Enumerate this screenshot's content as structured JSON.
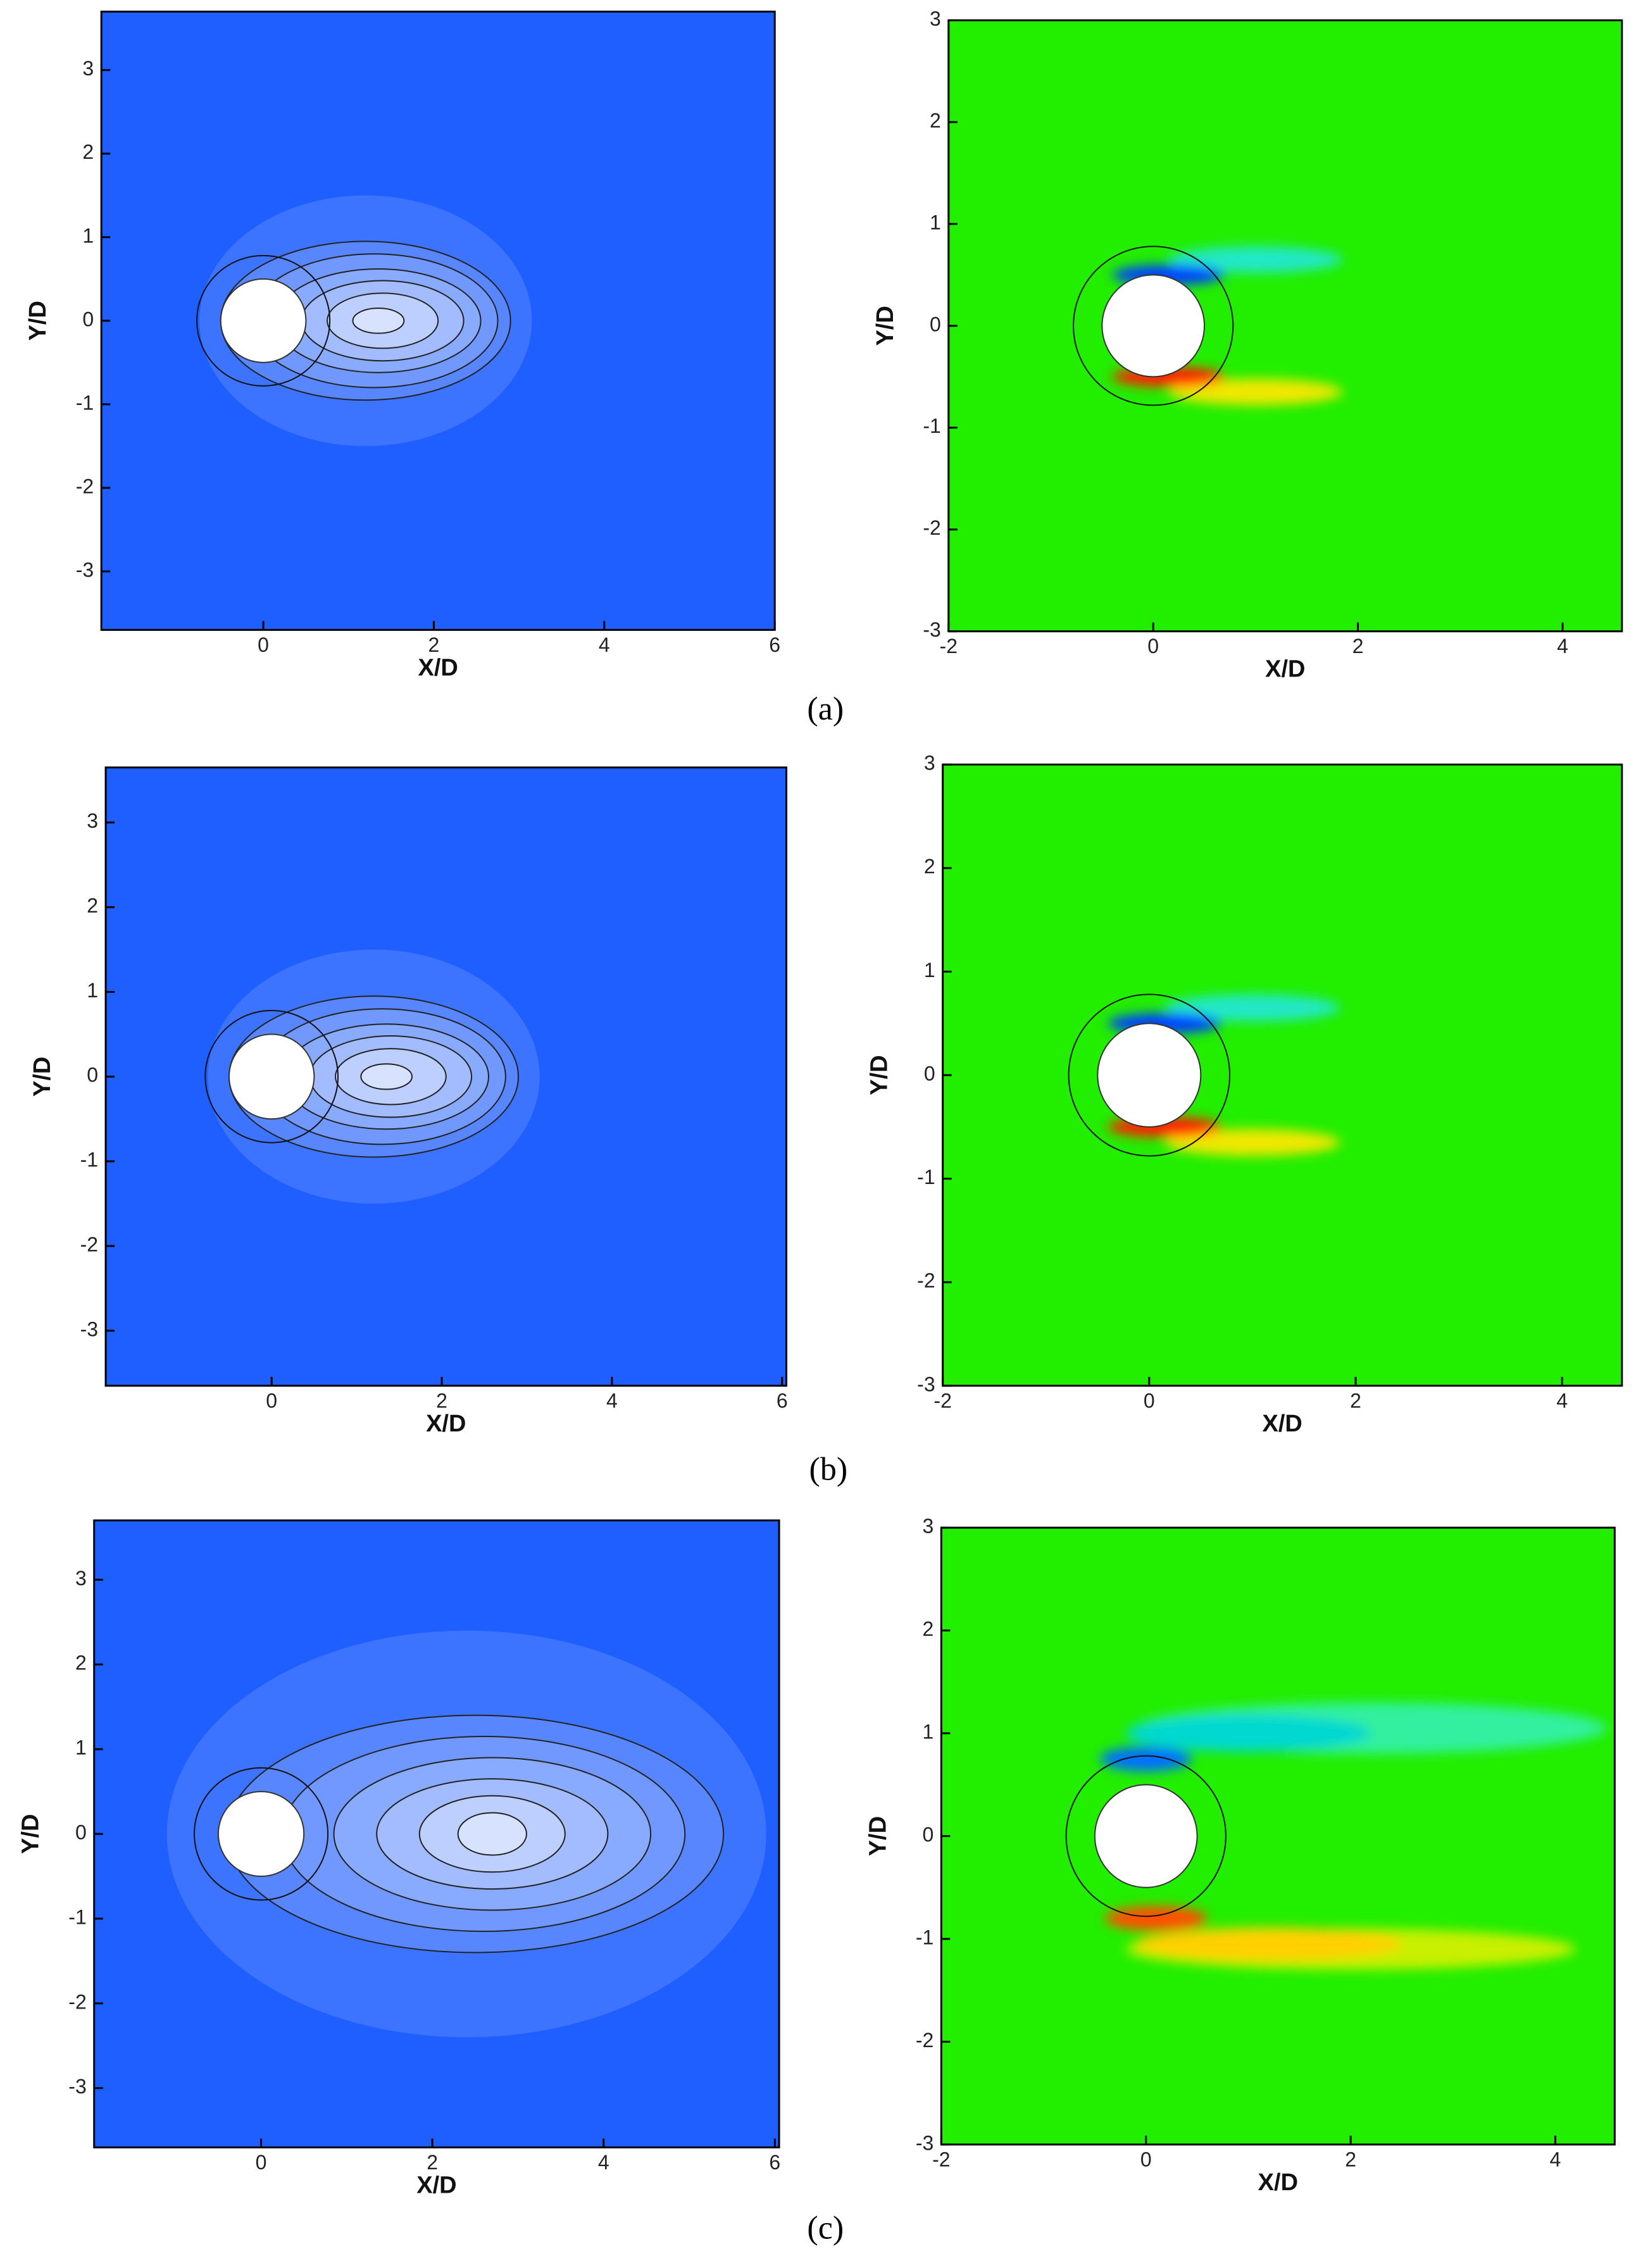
{
  "chart_data": [
    {
      "type": "contour",
      "color": "#1f5fff",
      "xlabel": "X/D",
      "ylabel": "Y/D",
      "xlim": [
        -1.9,
        6.0
      ],
      "ylim": [
        -3.7,
        3.7
      ],
      "xticks": [
        0,
        2,
        4,
        6
      ],
      "yticks": [
        -3,
        -2,
        -1,
        0,
        1,
        2,
        3
      ]
    },
    {
      "type": "contour",
      "color": "#22ee00",
      "xlabel": "X/D",
      "ylabel": "Y/D",
      "xlim": [
        -2,
        4.58
      ],
      "ylim": [
        -3,
        3
      ],
      "xticks": [
        -2,
        0,
        2,
        4
      ],
      "yticks": [
        -3,
        -2,
        -1,
        0,
        1,
        2,
        3
      ]
    },
    {
      "type": "contour",
      "color": "#1f5fff",
      "xlabel": "X/D",
      "ylabel": "Y/D",
      "xlim": [
        -1.95,
        6.05
      ],
      "ylim": [
        -3.65,
        3.65
      ],
      "xticks": [
        0,
        2,
        4,
        6
      ],
      "yticks": [
        -3,
        -2,
        -1,
        0,
        1,
        2,
        3
      ]
    },
    {
      "type": "contour",
      "color": "#22ee00",
      "xlabel": "X/D",
      "ylabel": "Y/D",
      "xlim": [
        -2,
        4.58
      ],
      "ylim": [
        -3,
        3
      ],
      "xticks": [
        -2,
        0,
        2,
        4
      ],
      "yticks": [
        -3,
        -2,
        -1,
        0,
        1,
        2,
        3
      ]
    },
    {
      "type": "contour",
      "color": "#1f5fff",
      "xlabel": "X/D",
      "ylabel": "Y/D",
      "xlim": [
        -1.95,
        6.05
      ],
      "ylim": [
        -3.7,
        3.7
      ],
      "xticks": [
        0,
        2,
        4,
        6
      ],
      "yticks": [
        -3,
        -2,
        -1,
        0,
        1,
        2,
        3
      ]
    },
    {
      "type": "contour",
      "color": "#22ee00",
      "xlabel": "X/D",
      "ylabel": "Y/D",
      "xlim": [
        -2,
        4.58
      ],
      "ylim": [
        -3,
        3
      ],
      "xticks": [
        -2,
        0,
        2,
        4
      ],
      "yticks": [
        -3,
        -2,
        -1,
        0,
        1,
        2,
        3
      ]
    }
  ],
  "captions": [
    "(a)",
    "(b)",
    "(c)"
  ]
}
